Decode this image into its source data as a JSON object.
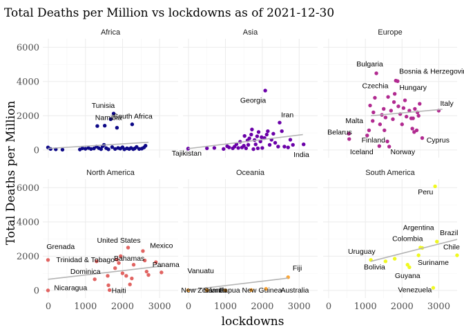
{
  "chart_data": {
    "type": "scatter",
    "title": "Total Deaths per Million vs lockdowns as of 2021-12-30",
    "xlabel": "lockdowns",
    "ylabel": "Total Deaths per Million",
    "xlim": [
      -150,
      3500
    ],
    "ylim": [
      -450,
      6500
    ],
    "x_ticks": [
      0,
      1000,
      2000,
      3000
    ],
    "y_ticks": [
      0,
      2000,
      4000,
      6000
    ],
    "grid": true,
    "layout": "facet 2x3",
    "panels": [
      {
        "name": "Africa",
        "color": "#0d0887",
        "trend": [
          [
            -10,
            90
          ],
          [
            2700,
            450
          ]
        ],
        "points": [
          {
            "x": -10,
            "y": 150
          },
          {
            "x": 60,
            "y": 60
          },
          {
            "x": 200,
            "y": 40
          },
          {
            "x": 380,
            "y": 20
          },
          {
            "x": 850,
            "y": 30
          },
          {
            "x": 920,
            "y": 100
          },
          {
            "x": 1000,
            "y": 70
          },
          {
            "x": 1080,
            "y": 120
          },
          {
            "x": 1150,
            "y": 60
          },
          {
            "x": 1230,
            "y": 90
          },
          {
            "x": 1300,
            "y": 200
          },
          {
            "x": 1320,
            "y": 1400
          },
          {
            "x": 1360,
            "y": 110
          },
          {
            "x": 1420,
            "y": 50
          },
          {
            "x": 1460,
            "y": 220
          },
          {
            "x": 1500,
            "y": 300
          },
          {
            "x": 1520,
            "y": 1420
          },
          {
            "x": 1560,
            "y": 110
          },
          {
            "x": 1620,
            "y": 40
          },
          {
            "x": 1680,
            "y": 1800
          },
          {
            "x": 1720,
            "y": 170
          },
          {
            "x": 1760,
            "y": 2130
          },
          {
            "x": 1800,
            "y": 60
          },
          {
            "x": 1850,
            "y": 1300
          },
          {
            "x": 1880,
            "y": 120
          },
          {
            "x": 1940,
            "y": 80
          },
          {
            "x": 2000,
            "y": 160
          },
          {
            "x": 2050,
            "y": 40
          },
          {
            "x": 2120,
            "y": 100
          },
          {
            "x": 2180,
            "y": 60
          },
          {
            "x": 2230,
            "y": 120
          },
          {
            "x": 2260,
            "y": 1500
          },
          {
            "x": 2290,
            "y": 50
          },
          {
            "x": 2330,
            "y": 90
          },
          {
            "x": 2380,
            "y": 180
          },
          {
            "x": 2450,
            "y": 60
          },
          {
            "x": 2520,
            "y": 80
          },
          {
            "x": 2580,
            "y": 150
          },
          {
            "x": 2620,
            "y": 250
          }
        ],
        "labels": [
          {
            "text": "Tunisia",
            "x": 1480,
            "y": 2450
          },
          {
            "text": "Namibia",
            "x": 1620,
            "y": 1750
          },
          {
            "text": "South Africa",
            "x": 2280,
            "y": 1840
          }
        ]
      },
      {
        "name": "Asia",
        "color": "#6a00a8",
        "trend": [
          [
            -10,
            80
          ],
          [
            3100,
            900
          ]
        ],
        "points": [
          {
            "x": -10,
            "y": 80
          },
          {
            "x": 500,
            "y": 100
          },
          {
            "x": 700,
            "y": 120
          },
          {
            "x": 950,
            "y": 60
          },
          {
            "x": 1050,
            "y": 220
          },
          {
            "x": 1100,
            "y": 150
          },
          {
            "x": 1200,
            "y": 100
          },
          {
            "x": 1250,
            "y": 200
          },
          {
            "x": 1300,
            "y": 340
          },
          {
            "x": 1350,
            "y": 120
          },
          {
            "x": 1400,
            "y": 480
          },
          {
            "x": 1450,
            "y": 150
          },
          {
            "x": 1500,
            "y": 250
          },
          {
            "x": 1520,
            "y": 820
          },
          {
            "x": 1560,
            "y": 100
          },
          {
            "x": 1600,
            "y": 560
          },
          {
            "x": 1620,
            "y": 300
          },
          {
            "x": 1650,
            "y": 680
          },
          {
            "x": 1700,
            "y": 900
          },
          {
            "x": 1720,
            "y": 1200
          },
          {
            "x": 1760,
            "y": 50
          },
          {
            "x": 1790,
            "y": 580
          },
          {
            "x": 1820,
            "y": 330
          },
          {
            "x": 1860,
            "y": 800
          },
          {
            "x": 1880,
            "y": 100
          },
          {
            "x": 1900,
            "y": 1050
          },
          {
            "x": 1950,
            "y": 500
          },
          {
            "x": 1980,
            "y": 750
          },
          {
            "x": 2000,
            "y": 120
          },
          {
            "x": 2060,
            "y": 700
          },
          {
            "x": 2080,
            "y": 3470
          },
          {
            "x": 2120,
            "y": 900
          },
          {
            "x": 2150,
            "y": 1100
          },
          {
            "x": 2200,
            "y": 300
          },
          {
            "x": 2250,
            "y": 600
          },
          {
            "x": 2300,
            "y": 950
          },
          {
            "x": 2350,
            "y": 420
          },
          {
            "x": 2430,
            "y": 200
          },
          {
            "x": 2470,
            "y": 1600
          },
          {
            "x": 2530,
            "y": 1100
          },
          {
            "x": 2600,
            "y": 200
          },
          {
            "x": 2700,
            "y": 150
          },
          {
            "x": 2760,
            "y": 600
          },
          {
            "x": 2830,
            "y": 300
          },
          {
            "x": 3120,
            "y": 330
          }
        ],
        "labels": [
          {
            "text": "Georgia",
            "x": 1750,
            "y": 2760
          },
          {
            "text": "Iran",
            "x": 2680,
            "y": 1920
          },
          {
            "text": "Tajikistan",
            "x": -50,
            "y": -330
          },
          {
            "text": "India",
            "x": 3060,
            "y": -400
          }
        ]
      },
      {
        "name": "Europe",
        "color": "#b12a90",
        "trend": [
          [
            1150,
            2000
          ],
          [
            3100,
            2380
          ]
        ],
        "points": [
          {
            "x": 550,
            "y": 950
          },
          {
            "x": 560,
            "y": 640
          },
          {
            "x": 1050,
            "y": 850
          },
          {
            "x": 1100,
            "y": 1150
          },
          {
            "x": 1130,
            "y": 2600
          },
          {
            "x": 1200,
            "y": 1700
          },
          {
            "x": 1220,
            "y": 2200
          },
          {
            "x": 1260,
            "y": 3050
          },
          {
            "x": 1300,
            "y": 4480
          },
          {
            "x": 1380,
            "y": 230
          },
          {
            "x": 1400,
            "y": 1500
          },
          {
            "x": 1450,
            "y": 2050
          },
          {
            "x": 1500,
            "y": 2400
          },
          {
            "x": 1520,
            "y": 1150
          },
          {
            "x": 1550,
            "y": 1900
          },
          {
            "x": 1600,
            "y": 500
          },
          {
            "x": 1620,
            "y": 3100
          },
          {
            "x": 1650,
            "y": 200
          },
          {
            "x": 1700,
            "y": 2300
          },
          {
            "x": 1750,
            "y": 1800
          },
          {
            "x": 1780,
            "y": 2800
          },
          {
            "x": 1800,
            "y": 3280
          },
          {
            "x": 1830,
            "y": 4050
          },
          {
            "x": 1880,
            "y": 4020
          },
          {
            "x": 1900,
            "y": 2550
          },
          {
            "x": 1950,
            "y": 2100
          },
          {
            "x": 2000,
            "y": 1500
          },
          {
            "x": 2040,
            "y": 2450
          },
          {
            "x": 2080,
            "y": 2900
          },
          {
            "x": 2120,
            "y": 1950
          },
          {
            "x": 2200,
            "y": 2300
          },
          {
            "x": 2250,
            "y": 1850
          },
          {
            "x": 2280,
            "y": 1250
          },
          {
            "x": 2300,
            "y": 1850
          },
          {
            "x": 2330,
            "y": 1050
          },
          {
            "x": 2350,
            "y": 2400
          },
          {
            "x": 2400,
            "y": 1150
          },
          {
            "x": 2420,
            "y": 2200
          },
          {
            "x": 2450,
            "y": 2000
          },
          {
            "x": 2480,
            "y": 2700
          },
          {
            "x": 2550,
            "y": 700
          },
          {
            "x": 3000,
            "y": 2300
          }
        ],
        "labels": [
          {
            "text": "Bulgaria",
            "x": 1120,
            "y": 4880
          },
          {
            "text": "Bosnia & Herzegovina",
            "x": 2900,
            "y": 4450
          },
          {
            "text": "Czechia",
            "x": 1270,
            "y": 3620
          },
          {
            "text": "Hungary",
            "x": 2300,
            "y": 3500
          },
          {
            "text": "Italy",
            "x": 3220,
            "y": 2580
          },
          {
            "text": "Malta",
            "x": 700,
            "y": 1580
          },
          {
            "text": "Belarus",
            "x": 300,
            "y": 900
          },
          {
            "text": "Finland",
            "x": 1220,
            "y": 440
          },
          {
            "text": "Cyprus",
            "x": 2980,
            "y": 440
          },
          {
            "text": "Iceland",
            "x": 900,
            "y": -250
          },
          {
            "text": "Norway",
            "x": 2020,
            "y": -250
          }
        ]
      },
      {
        "name": "North America",
        "color": "#e16462",
        "trend": [
          [
            -10,
            650
          ],
          [
            3100,
            1430
          ]
        ],
        "points": [
          {
            "x": -10,
            "y": 1780
          },
          {
            "x": -10,
            "y": 0
          },
          {
            "x": 1250,
            "y": 650
          },
          {
            "x": 1300,
            "y": 1700
          },
          {
            "x": 1600,
            "y": 850
          },
          {
            "x": 1620,
            "y": 300
          },
          {
            "x": 1650,
            "y": 20
          },
          {
            "x": 1800,
            "y": 1300
          },
          {
            "x": 1850,
            "y": 1800
          },
          {
            "x": 1900,
            "y": 1600
          },
          {
            "x": 1950,
            "y": 2000
          },
          {
            "x": 2000,
            "y": 1000
          },
          {
            "x": 2100,
            "y": 850
          },
          {
            "x": 2150,
            "y": 2500
          },
          {
            "x": 2200,
            "y": 350
          },
          {
            "x": 2250,
            "y": 700
          },
          {
            "x": 2300,
            "y": 1500
          },
          {
            "x": 2550,
            "y": 2300
          },
          {
            "x": 2600,
            "y": 1750
          },
          {
            "x": 2650,
            "y": 1100
          },
          {
            "x": 2700,
            "y": 900
          },
          {
            "x": 2900,
            "y": 1650
          },
          {
            "x": 3050,
            "y": 1050
          }
        ],
        "labels": [
          {
            "text": "Grenada",
            "x": 330,
            "y": 2420
          },
          {
            "text": "Trinidad & Tobago",
            "x": 1000,
            "y": 1650
          },
          {
            "text": "United States",
            "x": 1900,
            "y": 2780
          },
          {
            "text": "Mexico",
            "x": 3050,
            "y": 2480
          },
          {
            "text": "Bahamas",
            "x": 2180,
            "y": 1730
          },
          {
            "text": "Panama",
            "x": 3170,
            "y": 1370
          },
          {
            "text": "Dominica",
            "x": 1000,
            "y": 960
          },
          {
            "text": "Nicaragua",
            "x": 600,
            "y": 5
          },
          {
            "text": "Haiti",
            "x": 1900,
            "y": -150
          }
        ]
      },
      {
        "name": "Oceania",
        "color": "#fca636",
        "trend": [
          [
            -10,
            20
          ],
          [
            2700,
            720
          ]
        ],
        "points": [
          {
            "x": -10,
            "y": 10
          },
          {
            "x": 500,
            "y": 10
          },
          {
            "x": 1000,
            "y": 5
          },
          {
            "x": 1700,
            "y": 20
          },
          {
            "x": 2100,
            "y": 90
          },
          {
            "x": 2700,
            "y": 770
          }
        ],
        "labels": [
          {
            "text": "Vanuatu",
            "x": 330,
            "y": 1000
          },
          {
            "text": "Fiji",
            "x": 2950,
            "y": 1170
          },
          {
            "text": "New Zealand",
            "x": 380,
            "y": -120
          },
          {
            "text": "Samoa",
            "x": 720,
            "y": -120
          },
          {
            "text": "Papua New Guinea",
            "x": 1680,
            "y": -120
          },
          {
            "text": "Australia",
            "x": 2880,
            "y": -120
          }
        ]
      },
      {
        "name": "South America",
        "color": "#f0f921",
        "trend": [
          [
            1150,
            1700
          ],
          [
            3500,
            2980
          ]
        ],
        "points": [
          {
            "x": 1150,
            "y": 1780
          },
          {
            "x": 1550,
            "y": 1700
          },
          {
            "x": 1800,
            "y": 1850
          },
          {
            "x": 2150,
            "y": 1500
          },
          {
            "x": 2200,
            "y": 1350
          },
          {
            "x": 2450,
            "y": 2050
          },
          {
            "x": 2500,
            "y": 2500
          },
          {
            "x": 2550,
            "y": 2480
          },
          {
            "x": 2850,
            "y": 150
          },
          {
            "x": 2900,
            "y": 6080
          },
          {
            "x": 2950,
            "y": 2850
          },
          {
            "x": 3500,
            "y": 2050
          }
        ],
        "labels": [
          {
            "text": "Peru",
            "x": 2640,
            "y": 5620
          },
          {
            "text": "Argentina",
            "x": 2450,
            "y": 3530
          },
          {
            "text": "Brazil",
            "x": 3280,
            "y": 3220
          },
          {
            "text": "Colombia",
            "x": 2150,
            "y": 2880
          },
          {
            "text": "Chile",
            "x": 3350,
            "y": 2400
          },
          {
            "text": "Uruguay",
            "x": 900,
            "y": 2140
          },
          {
            "text": "Suriname",
            "x": 2850,
            "y": 1490
          },
          {
            "text": "Bolivia",
            "x": 1250,
            "y": 1220
          },
          {
            "text": "Guyana",
            "x": 2150,
            "y": 730
          },
          {
            "text": "Venezuela",
            "x": 2350,
            "y": -100
          }
        ]
      }
    ]
  }
}
